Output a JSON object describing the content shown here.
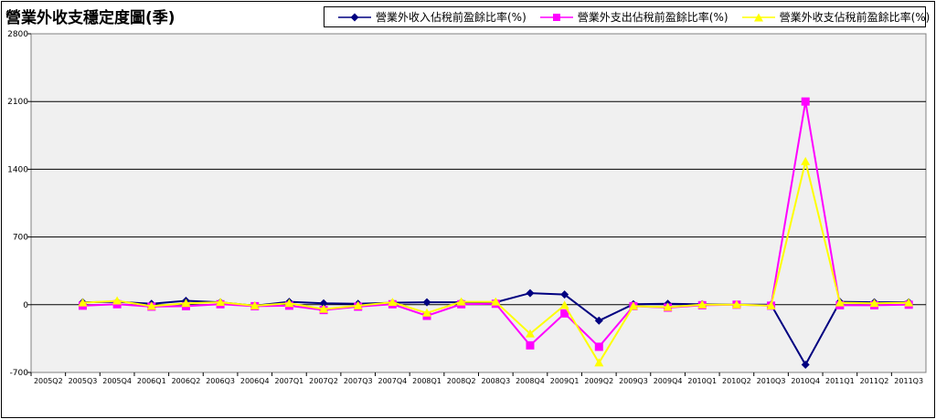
{
  "title": "營業外收支穩定度圖(季)",
  "chart_data": {
    "type": "line",
    "title": "營業外收支穩定度圖(季)",
    "categories": [
      "2005Q2",
      "2005Q3",
      "2005Q4",
      "2006Q1",
      "2006Q2",
      "2006Q3",
      "2006Q4",
      "2007Q1",
      "2007Q2",
      "2007Q3",
      "2007Q4",
      "2008Q1",
      "2008Q2",
      "2008Q3",
      "2008Q4",
      "2009Q1",
      "2009Q2",
      "2009Q3",
      "2009Q4",
      "2010Q1",
      "2010Q2",
      "2010Q3",
      "2010Q4",
      "2011Q1",
      "2011Q2",
      "2011Q3"
    ],
    "ylim": [
      -700,
      2800
    ],
    "yticks": [
      -700,
      0,
      700,
      1400,
      2100,
      2800
    ],
    "grid": true,
    "legend_position": "top-right",
    "series": [
      {
        "name": "營業外收入佔稅前盈餘比率(%)",
        "color": "#000080",
        "marker": "diamond",
        "values": [
          null,
          25,
          30,
          10,
          40,
          25,
          -10,
          30,
          15,
          10,
          20,
          25,
          25,
          25,
          120,
          105,
          -165,
          5,
          10,
          5,
          0,
          0,
          -620,
          30,
          25,
          25
        ]
      },
      {
        "name": "營業外支出佔稅前盈餘比率(%)",
        "color": "#FF00FF",
        "marker": "square",
        "values": [
          null,
          -10,
          5,
          -20,
          -15,
          5,
          -15,
          -10,
          -55,
          -20,
          5,
          -115,
          5,
          10,
          -420,
          -90,
          -435,
          -15,
          -30,
          -5,
          0,
          -10,
          2100,
          -5,
          -5,
          0
        ]
      },
      {
        "name": "營業外收支佔稅前盈餘比率(%)",
        "color": "#FFFF00",
        "marker": "triangle",
        "values": [
          null,
          20,
          40,
          -15,
          15,
          25,
          -10,
          15,
          -45,
          -10,
          25,
          -85,
          30,
          30,
          -300,
          -5,
          -600,
          -15,
          -25,
          0,
          0,
          -10,
          1480,
          20,
          15,
          20
        ]
      }
    ]
  }
}
